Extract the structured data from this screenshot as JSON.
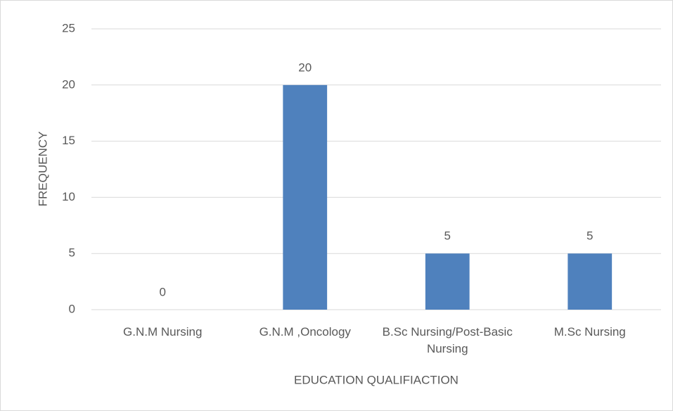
{
  "chart_data": {
    "type": "bar",
    "x_label": "EDUCATION QUALIFIACTION",
    "y_label": "FREQUENCY",
    "categories": [
      "G.N.M Nursing",
      "G.N.M ,Oncology",
      "B.Sc Nursing/Post-Basic Nursing",
      "M.Sc Nursing"
    ],
    "values": [
      0,
      20,
      5,
      5
    ],
    "color": "#4f81bd",
    "ylim": [
      0,
      25
    ],
    "yticks": [
      0,
      5,
      10,
      15,
      20,
      25
    ],
    "grid": true
  }
}
